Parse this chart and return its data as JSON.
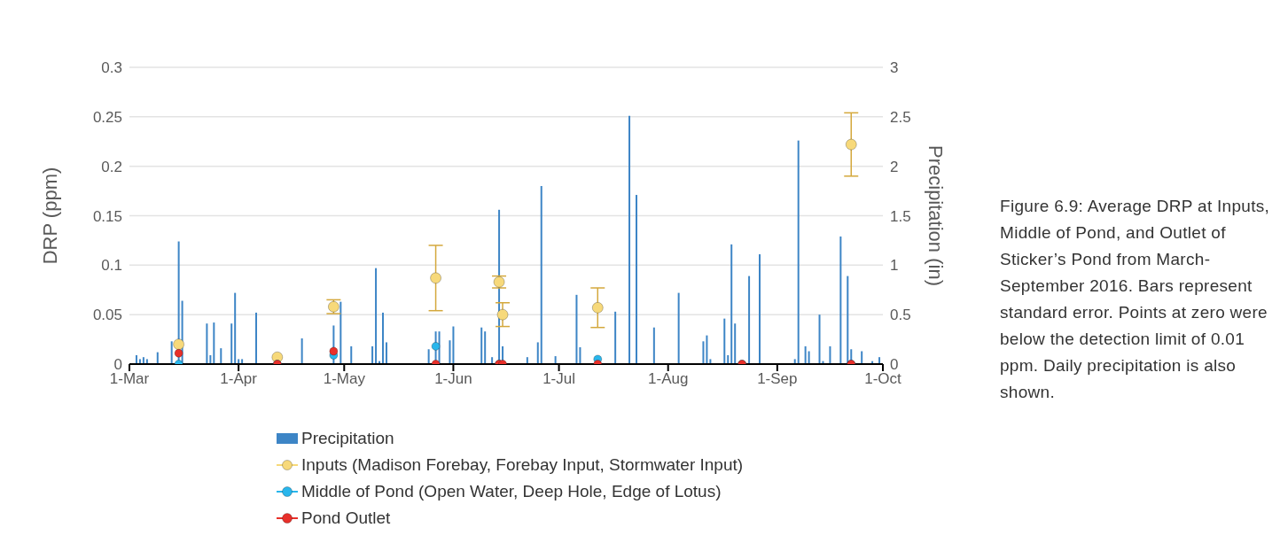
{
  "chart_data": {
    "type": "scatter",
    "ylabel": "DRP (ppm)",
    "y2label": "Precipitation (in)",
    "annotations": [
      "Figure 6.9: Average DRP at Inputs, Middle of Pond, and Outlet of Sticker’s Pond from March-September 2016. Bars represent standard error. Points at zero were below the detection limit of 0.01 ppm. Daily precipitation is also shown."
    ],
    "xlim": [
      "2016-03-01",
      "2016-10-01"
    ],
    "xticks": [
      {
        "value": "2016-03-01",
        "label": "1-Mar"
      },
      {
        "value": "2016-04-01",
        "label": "1-Apr"
      },
      {
        "value": "2016-05-01",
        "label": "1-May"
      },
      {
        "value": "2016-06-01",
        "label": "1-Jun"
      },
      {
        "value": "2016-07-01",
        "label": "1-Jul"
      },
      {
        "value": "2016-08-01",
        "label": "1-Aug"
      },
      {
        "value": "2016-09-01",
        "label": "1-Sep"
      },
      {
        "value": "2016-10-01",
        "label": "1-Oct"
      }
    ],
    "ylim": [
      0,
      0.3
    ],
    "yticks": [
      0,
      0.05,
      0.1,
      0.15,
      0.2,
      0.25,
      0.3
    ],
    "y2lim": [
      0,
      3
    ],
    "y2ticks": [
      0,
      0.5,
      1,
      1.5,
      2,
      2.5,
      3
    ],
    "grid": "y",
    "legend": "bottom",
    "marker": "circle",
    "series": [
      {
        "name": "Precipitation",
        "type": "bar",
        "axis": "y2",
        "color": "#3d85c6",
        "x": [
          "2016-03-03",
          "2016-03-04",
          "2016-03-05",
          "2016-03-06",
          "2016-03-09",
          "2016-03-13",
          "2016-03-15",
          "2016-03-16",
          "2016-03-23",
          "2016-03-24",
          "2016-03-25",
          "2016-03-27",
          "2016-03-30",
          "2016-03-31",
          "2016-04-01",
          "2016-04-02",
          "2016-04-06",
          "2016-04-19",
          "2016-04-28",
          "2016-04-30",
          "2016-05-03",
          "2016-05-09",
          "2016-05-10",
          "2016-05-11",
          "2016-05-12",
          "2016-05-13",
          "2016-05-25",
          "2016-05-27",
          "2016-05-28",
          "2016-05-31",
          "2016-06-01",
          "2016-06-09",
          "2016-06-10",
          "2016-06-12",
          "2016-06-14",
          "2016-06-15",
          "2016-06-22",
          "2016-06-25",
          "2016-06-26",
          "2016-06-30",
          "2016-07-06",
          "2016-07-07",
          "2016-07-17",
          "2016-07-21",
          "2016-07-23",
          "2016-07-28",
          "2016-07-29",
          "2016-08-04",
          "2016-08-11",
          "2016-08-12",
          "2016-08-13",
          "2016-08-17",
          "2016-08-18",
          "2016-08-19",
          "2016-08-20",
          "2016-08-24",
          "2016-08-27",
          "2016-09-06",
          "2016-09-07",
          "2016-09-09",
          "2016-09-10",
          "2016-09-13",
          "2016-09-14",
          "2016-09-16",
          "2016-09-19",
          "2016-09-21",
          "2016-09-22",
          "2016-09-25",
          "2016-09-27",
          "2016-09-28",
          "2016-09-30"
        ],
        "values": [
          0.09,
          0.05,
          0.07,
          0.05,
          0.12,
          0.23,
          1.24,
          0.64,
          0.41,
          0.09,
          0.42,
          0.16,
          0.41,
          0.72,
          0.05,
          0.05,
          0.52,
          0.26,
          0.39,
          0.63,
          0.18,
          0.18,
          0.97,
          0.03,
          0.52,
          0.22,
          0.15,
          0.33,
          0.33,
          0.24,
          0.38,
          0.37,
          0.33,
          0.07,
          1.56,
          0.18,
          0.07,
          0.22,
          1.8,
          0.08,
          0.7,
          0.17,
          0.53,
          2.51,
          1.71,
          0.37,
          null,
          0.72,
          0.23,
          0.29,
          0.05,
          0.46,
          0.09,
          1.21,
          0.41,
          0.89,
          1.11,
          0.05,
          2.26,
          0.18,
          0.13,
          0.5,
          0.03,
          0.18,
          1.29,
          0.89,
          0.15,
          0.13,
          null,
          0.03,
          0.07
        ]
      },
      {
        "name": "Inputs (Madison Forebay, Forebay Input, Stormwater Input)",
        "color": "#f7d97a",
        "x": [
          "2016-03-15",
          "2016-04-12",
          "2016-04-28",
          "2016-05-27",
          "2016-06-14",
          "2016-06-15",
          "2016-07-12",
          "2016-09-22"
        ],
        "values": [
          0.02,
          0.007,
          0.058,
          0.087,
          0.083,
          0.05,
          0.057,
          0.222
        ],
        "errors": [
          null,
          null,
          0.007,
          0.033,
          0.006,
          0.012,
          0.02,
          0.032
        ]
      },
      {
        "name": "Middle of Pond (Open Water, Deep Hole, Edge of Lotus)",
        "color": "#29b6ec",
        "x": [
          "2016-03-15",
          "2016-04-12",
          "2016-04-28",
          "2016-05-27",
          "2016-06-14",
          "2016-07-12",
          "2016-08-22",
          "2016-09-22"
        ],
        "values": [
          0,
          0,
          0.009,
          0.018,
          0,
          0.005,
          0,
          0
        ]
      },
      {
        "name": "Pond Outlet",
        "color": "#e8302a",
        "x": [
          "2016-03-15",
          "2016-04-12",
          "2016-04-28",
          "2016-05-27",
          "2016-06-14",
          "2016-06-15",
          "2016-07-12",
          "2016-08-22",
          "2016-09-22"
        ],
        "values": [
          0.011,
          0,
          0.013,
          0,
          0,
          0,
          0,
          0,
          0
        ]
      }
    ]
  }
}
